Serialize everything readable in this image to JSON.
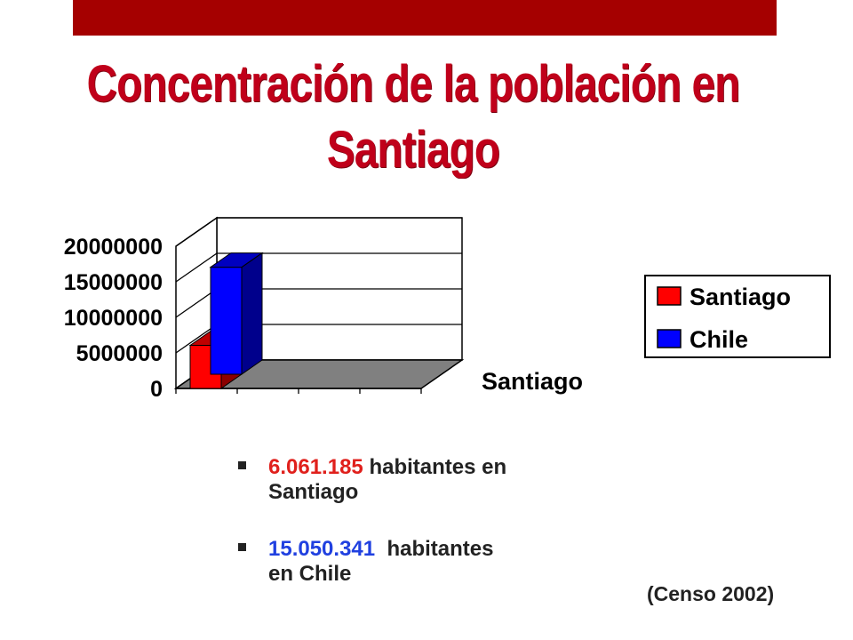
{
  "title": "Concentración de la población en Santiago",
  "colors": {
    "accent_bar": "#a50000",
    "title": "#c0001a",
    "santiago": "#ff0000",
    "chile": "#0000ff"
  },
  "chart_data": {
    "type": "bar",
    "categories": [
      "Santiago"
    ],
    "series": [
      {
        "name": "Santiago",
        "values": [
          6061185
        ],
        "color": "#ff0000"
      },
      {
        "name": "Chile",
        "values": [
          15050341
        ],
        "color": "#0000ff"
      }
    ],
    "yticks": [
      "20000000",
      "15000000",
      "10000000",
      "5000000",
      "0"
    ],
    "ylim": [
      0,
      20000000
    ],
    "legend": "right",
    "grid": true,
    "style": "3d"
  },
  "bullets": [
    {
      "number": "6.061.185",
      "text1": " habitantes en",
      "text2": "Santiago"
    },
    {
      "number": "15.050.341",
      "text1": "  habitantes",
      "text2": "en Chile"
    }
  ],
  "source": "(Censo 2002)"
}
